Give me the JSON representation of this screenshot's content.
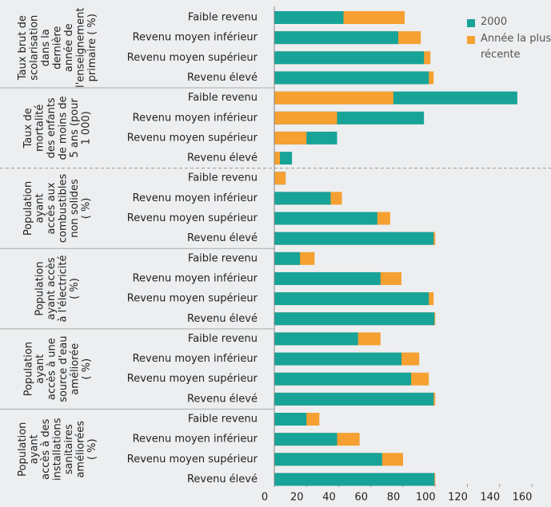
{
  "chart_data": {
    "type": "bar",
    "orientation": "horizontal",
    "groups": [
      {
        "label": [
          "Taux brut de",
          "scolarisation",
          "dans la",
          "dernière",
          "année de",
          "l'enseignement",
          "primaire ( %)"
        ]
      },
      {
        "label": [
          "Taux de",
          "mortalité",
          "des enfants",
          "de moins de",
          "5 ans (pour",
          "1 000)"
        ]
      },
      {
        "label": [
          "Population",
          "ayant",
          "accès aux",
          "combustibles",
          "non solides",
          "( %)"
        ]
      },
      {
        "label": [
          "Population",
          "ayant accès",
          "à l'électricité",
          "( %)"
        ]
      },
      {
        "label": [
          "Population",
          "ayant",
          "accès à une",
          "source d'eau",
          "améliorée",
          "( %)"
        ]
      },
      {
        "label": [
          "Population",
          "ayant",
          "accès à des",
          "installations",
          "sanitaires",
          "améliorées",
          "( %)"
        ]
      }
    ],
    "categories": [
      "Faible revenu",
      "Revenu moyen inférieur",
      "Revenu moyen supérieur",
      "Revenu élevé",
      "Faible revenu",
      "Revenu moyen inférieur",
      "Revenu moyen supérieur",
      "Revenu élevé",
      "Faible revenu",
      "Revenu moyen inférieur",
      "Revenu moyen supérieur",
      "Revenu élevé",
      "Faible revenu",
      "Revenu moyen inférieur",
      "Revenu moyen supérieur",
      "Revenu élevé",
      "Faible revenu",
      "Revenu moyen inférieur",
      "Revenu moyen supérieur",
      "Revenu élevé",
      "Faible revenu",
      "Revenu moyen inférieur",
      "Revenu moyen supérieur",
      "Revenu élevé"
    ],
    "series": [
      {
        "name": "2000",
        "color": "#17a398",
        "values": [
          43,
          77,
          93,
          96,
          151,
          93,
          39,
          11,
          7,
          35,
          64,
          99,
          16,
          66,
          96,
          99.5,
          52,
          79,
          85,
          99,
          20,
          39,
          67,
          99.5
        ]
      },
      {
        "name": "Année la plus récente",
        "color": "#f5a031",
        "values": [
          81,
          91,
          97,
          99,
          74,
          39,
          20,
          3.5,
          7,
          42,
          72,
          100,
          25,
          79,
          99,
          100,
          66,
          90,
          96,
          100,
          28,
          53,
          80,
          100
        ]
      }
    ],
    "xlim": [
      0,
      160
    ],
    "xticks": [
      0,
      20,
      40,
      60,
      80,
      100,
      120,
      140,
      160
    ]
  }
}
